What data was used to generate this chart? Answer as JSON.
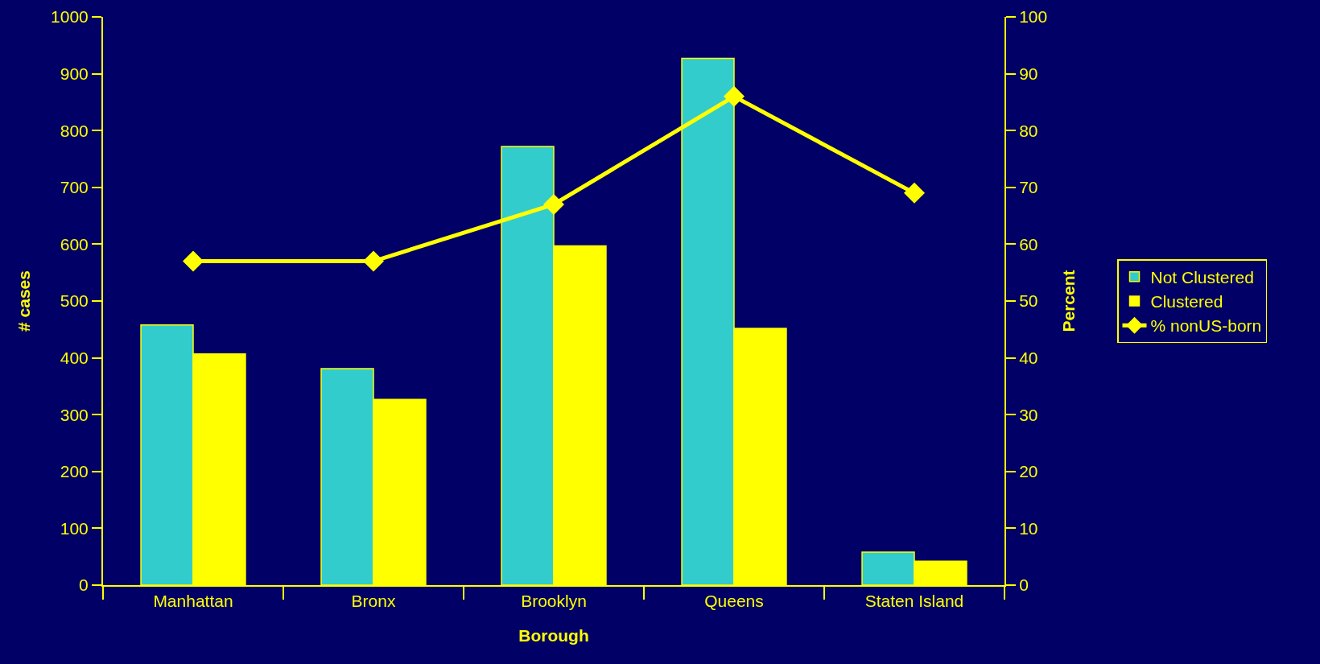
{
  "chart_data": {
    "type": "bar",
    "xlabel": "Borough",
    "ylabel": "# cases",
    "y2label": "Percent",
    "categories": [
      "Manhattan",
      "Bronx",
      "Brooklyn",
      "Queens",
      "Staten Island"
    ],
    "series": [
      {
        "name": "Not Clustered",
        "color": "#33cccc",
        "values": [
          458,
          381,
          772,
          927,
          58
        ]
      },
      {
        "name": "Clustered",
        "color": "#ffff00",
        "values": [
          407,
          327,
          597,
          452,
          42
        ]
      },
      {
        "name": "% nonUS-born",
        "type": "line",
        "axis": "y2",
        "color": "#ffff00",
        "marker": "diamond",
        "values": [
          57,
          57,
          67,
          86,
          69
        ]
      }
    ],
    "ylim": [
      0,
      1000
    ],
    "yticks": [
      0,
      100,
      200,
      300,
      400,
      500,
      600,
      700,
      800,
      900,
      1000
    ],
    "y2lim": [
      0,
      100
    ],
    "y2ticks": [
      0,
      10,
      20,
      30,
      40,
      50,
      60,
      70,
      80,
      90,
      100
    ],
    "grid": false,
    "legend": "right"
  }
}
